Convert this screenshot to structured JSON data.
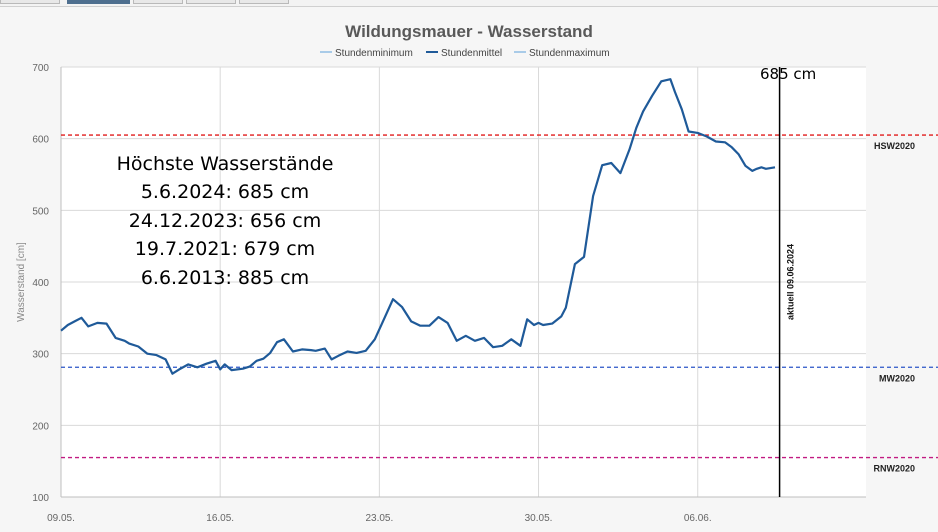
{
  "tabs": [
    "",
    "",
    "",
    "",
    ""
  ],
  "chart_data": {
    "type": "line",
    "title": "Wildungsmauer - Wasserstand",
    "ylabel": "Wasserstand [cm]",
    "xlabel": "",
    "ylim": [
      100,
      700
    ],
    "yticks": [
      100,
      200,
      300,
      400,
      500,
      600,
      700
    ],
    "x_start": "09.05.",
    "x_end": "10.06.",
    "xticks": [
      "09.05.",
      "16.05.",
      "23.05.",
      "30.05.",
      "06.06."
    ],
    "grid": true,
    "legend": [
      {
        "name": "Stundenminimum",
        "color": "#a9cbe8"
      },
      {
        "name": "Stundenmittel",
        "color": "#1f5a99"
      },
      {
        "name": "Stundenmaximum",
        "color": "#a9cbe8"
      }
    ],
    "series": [
      {
        "name": "Stundenmittel",
        "color": "#1f5a99",
        "x": [
          0,
          0.3,
          0.6,
          0.9,
          1.2,
          1.6,
          2.0,
          2.4,
          2.8,
          3.0,
          3.4,
          3.8,
          4.2,
          4.6,
          4.9,
          5.2,
          5.6,
          6.0,
          6.4,
          6.8,
          7.0,
          7.2,
          7.5,
          8.0,
          8.3,
          8.6,
          8.9,
          9.2,
          9.5,
          9.8,
          10.2,
          10.6,
          11.0,
          11.2,
          11.6,
          11.9,
          12.2,
          12.6,
          13.0,
          13.4,
          13.8,
          14.2,
          14.6,
          15.0,
          15.4,
          15.8,
          16.2,
          16.6,
          17.0,
          17.4,
          17.8,
          18.2,
          18.6,
          19.0,
          19.4,
          19.8,
          20.2,
          20.5,
          20.8,
          21.0,
          21.2,
          21.6,
          22.0,
          22.2,
          22.6,
          23.0,
          23.4,
          23.8,
          24.2,
          24.6,
          25.0,
          25.3,
          25.6,
          26.0,
          26.4,
          26.8,
          27.0,
          27.3,
          27.6,
          28.0,
          28.4,
          28.8,
          29.2,
          29.5,
          29.8,
          30.1,
          30.4,
          30.6,
          30.8,
          31.0,
          31.2,
          31.4
        ],
        "values": [
          332,
          340,
          345,
          350,
          338,
          343,
          342,
          322,
          318,
          314,
          310,
          300,
          298,
          292,
          272,
          278,
          285,
          281,
          286,
          290,
          278,
          285,
          277,
          279,
          282,
          290,
          293,
          301,
          316,
          320,
          303,
          306,
          305,
          304,
          307,
          292,
          297,
          303,
          301,
          304,
          320,
          348,
          376,
          365,
          345,
          339,
          339,
          351,
          343,
          318,
          325,
          318,
          322,
          309,
          311,
          320,
          311,
          348,
          340,
          343,
          340,
          342,
          352,
          364,
          425,
          435,
          520,
          563,
          566,
          552,
          585,
          615,
          638,
          660,
          680,
          683,
          665,
          641,
          610,
          608,
          603,
          596,
          595,
          588,
          578,
          562,
          555,
          558,
          560,
          558,
          559,
          560
        ]
      }
    ],
    "reference_lines": [
      {
        "label": "HSW2020",
        "value": 605,
        "color": "#e11b1b"
      },
      {
        "label": "MW2020",
        "value": 281,
        "color": "#2b55c8"
      },
      {
        "label": "RNW2020",
        "value": 155,
        "color": "#c21b82"
      }
    ],
    "current_marker": {
      "label": "aktuell 09.06.2024",
      "x": 31.6
    },
    "annotations": {
      "peak_label": "685 cm",
      "records": [
        "Höchste Wasserstände",
        "5.6.2024: 685 cm",
        "24.12.2023: 656 cm",
        "19.7.2021: 679 cm",
        "6.6.2013: 885 cm"
      ]
    }
  }
}
